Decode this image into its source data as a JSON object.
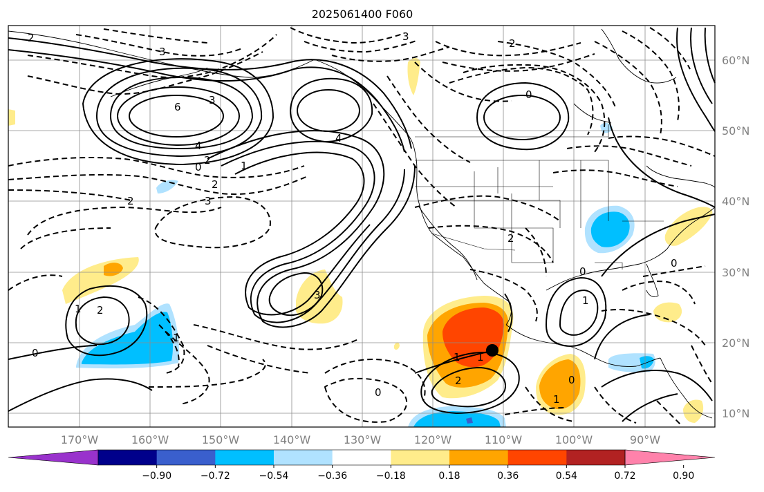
{
  "title": "2025061400 F060",
  "longitude_labels": [
    "170°W",
    "160°W",
    "150°W",
    "140°W",
    "130°W",
    "120°W",
    "110°W",
    "100°W",
    "90°W"
  ],
  "latitude_labels": [
    "60°N",
    "50°N",
    "40°N",
    "30°N",
    "20°N",
    "10°N"
  ],
  "contour_labels": [
    "2",
    "3",
    "6",
    "4",
    "3",
    "4",
    "2",
    "0",
    "1",
    "2",
    "3",
    "2",
    "3",
    "0",
    "3",
    "2",
    "0",
    "2",
    "1",
    "1",
    "2",
    "0",
    "0",
    "1",
    "1",
    "0",
    "0",
    "1",
    "2",
    "1"
  ],
  "colorbar": {
    "ticks": [
      "−0.90",
      "−0.72",
      "−0.54",
      "−0.36",
      "−0.18",
      "0.18",
      "0.36",
      "0.54",
      "0.72",
      "0.90"
    ],
    "colors": [
      "#9932cc",
      "#00008b",
      "#3a5fcd",
      "#00bfff",
      "#b0e2ff",
      "#ffffff",
      "#ffec8b",
      "#ffa500",
      "#ff4500",
      "#b22222",
      "#ff82ab"
    ]
  },
  "field_colors": {
    "light_yellow": "#ffec8b",
    "orange": "#ffa500",
    "red_orange": "#ff4500",
    "light_blue": "#b0e2ff",
    "deep_sky_blue": "#00bfff",
    "blue": "#3a5fcd"
  },
  "marker": {
    "name": "black-dot",
    "lon": -110.3,
    "lat": 19.1
  }
}
